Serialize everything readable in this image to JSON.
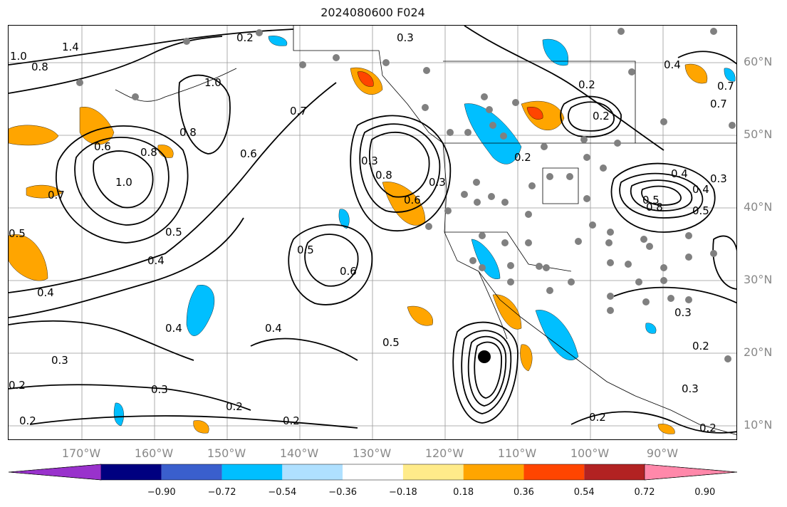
{
  "title": "2024080600 F024",
  "lat_labels": [
    "60°N",
    "50°N",
    "40°N",
    "30°N",
    "20°N",
    "10°N"
  ],
  "lon_labels": [
    "170°W",
    "160°W",
    "150°W",
    "140°W",
    "130°W",
    "120°W",
    "110°W",
    "100°W",
    "90°W"
  ],
  "colorbar": {
    "colors": [
      "#9932cc",
      "#000080",
      "#3a5fcd",
      "#00bfff",
      "#afe0ff",
      "#ffffff",
      "#ffeb8a",
      "#ffa500",
      "#ff4500",
      "#b22222",
      "#ff88aa"
    ],
    "labels": [
      "−0.90",
      "−0.72",
      "−0.54",
      "−0.36",
      "−0.18",
      "0.18",
      "0.36",
      "0.54",
      "0.72",
      "0.90"
    ]
  },
  "contour_labels": [
    "1.4",
    "1.0",
    "0.8",
    "0.2",
    "0.3",
    "0.4",
    "0.7",
    "1.0",
    "0.7",
    "0.8",
    "0.6",
    "0.8",
    "0.6",
    "0.7",
    "1.0",
    "0.7",
    "0.5",
    "0.5",
    "0.4",
    "0.4",
    "0.5",
    "0.6",
    "0.8",
    "0.3",
    "0.6",
    "0.3",
    "0.2",
    "0.4",
    "0.5",
    "0.4",
    "0.3",
    "0.4",
    "0.4",
    "0.5",
    "0.8",
    "0.5",
    "0.3",
    "0.3",
    "0.2",
    "0.3",
    "0.2",
    "0.2",
    "0.2",
    "0.2",
    "0.2",
    "0.3",
    "0.2",
    "0.2",
    "0.2"
  ],
  "colors": {
    "contour": "#000000",
    "grid": "#999999",
    "station": "#808080",
    "positive": "#ffa500",
    "strong_positive": "#ff4500",
    "negative": "#00bfff",
    "light_negative": "#afe0ff"
  },
  "icons": {
    "station": "station-dot",
    "storm": "storm-center-marker"
  }
}
